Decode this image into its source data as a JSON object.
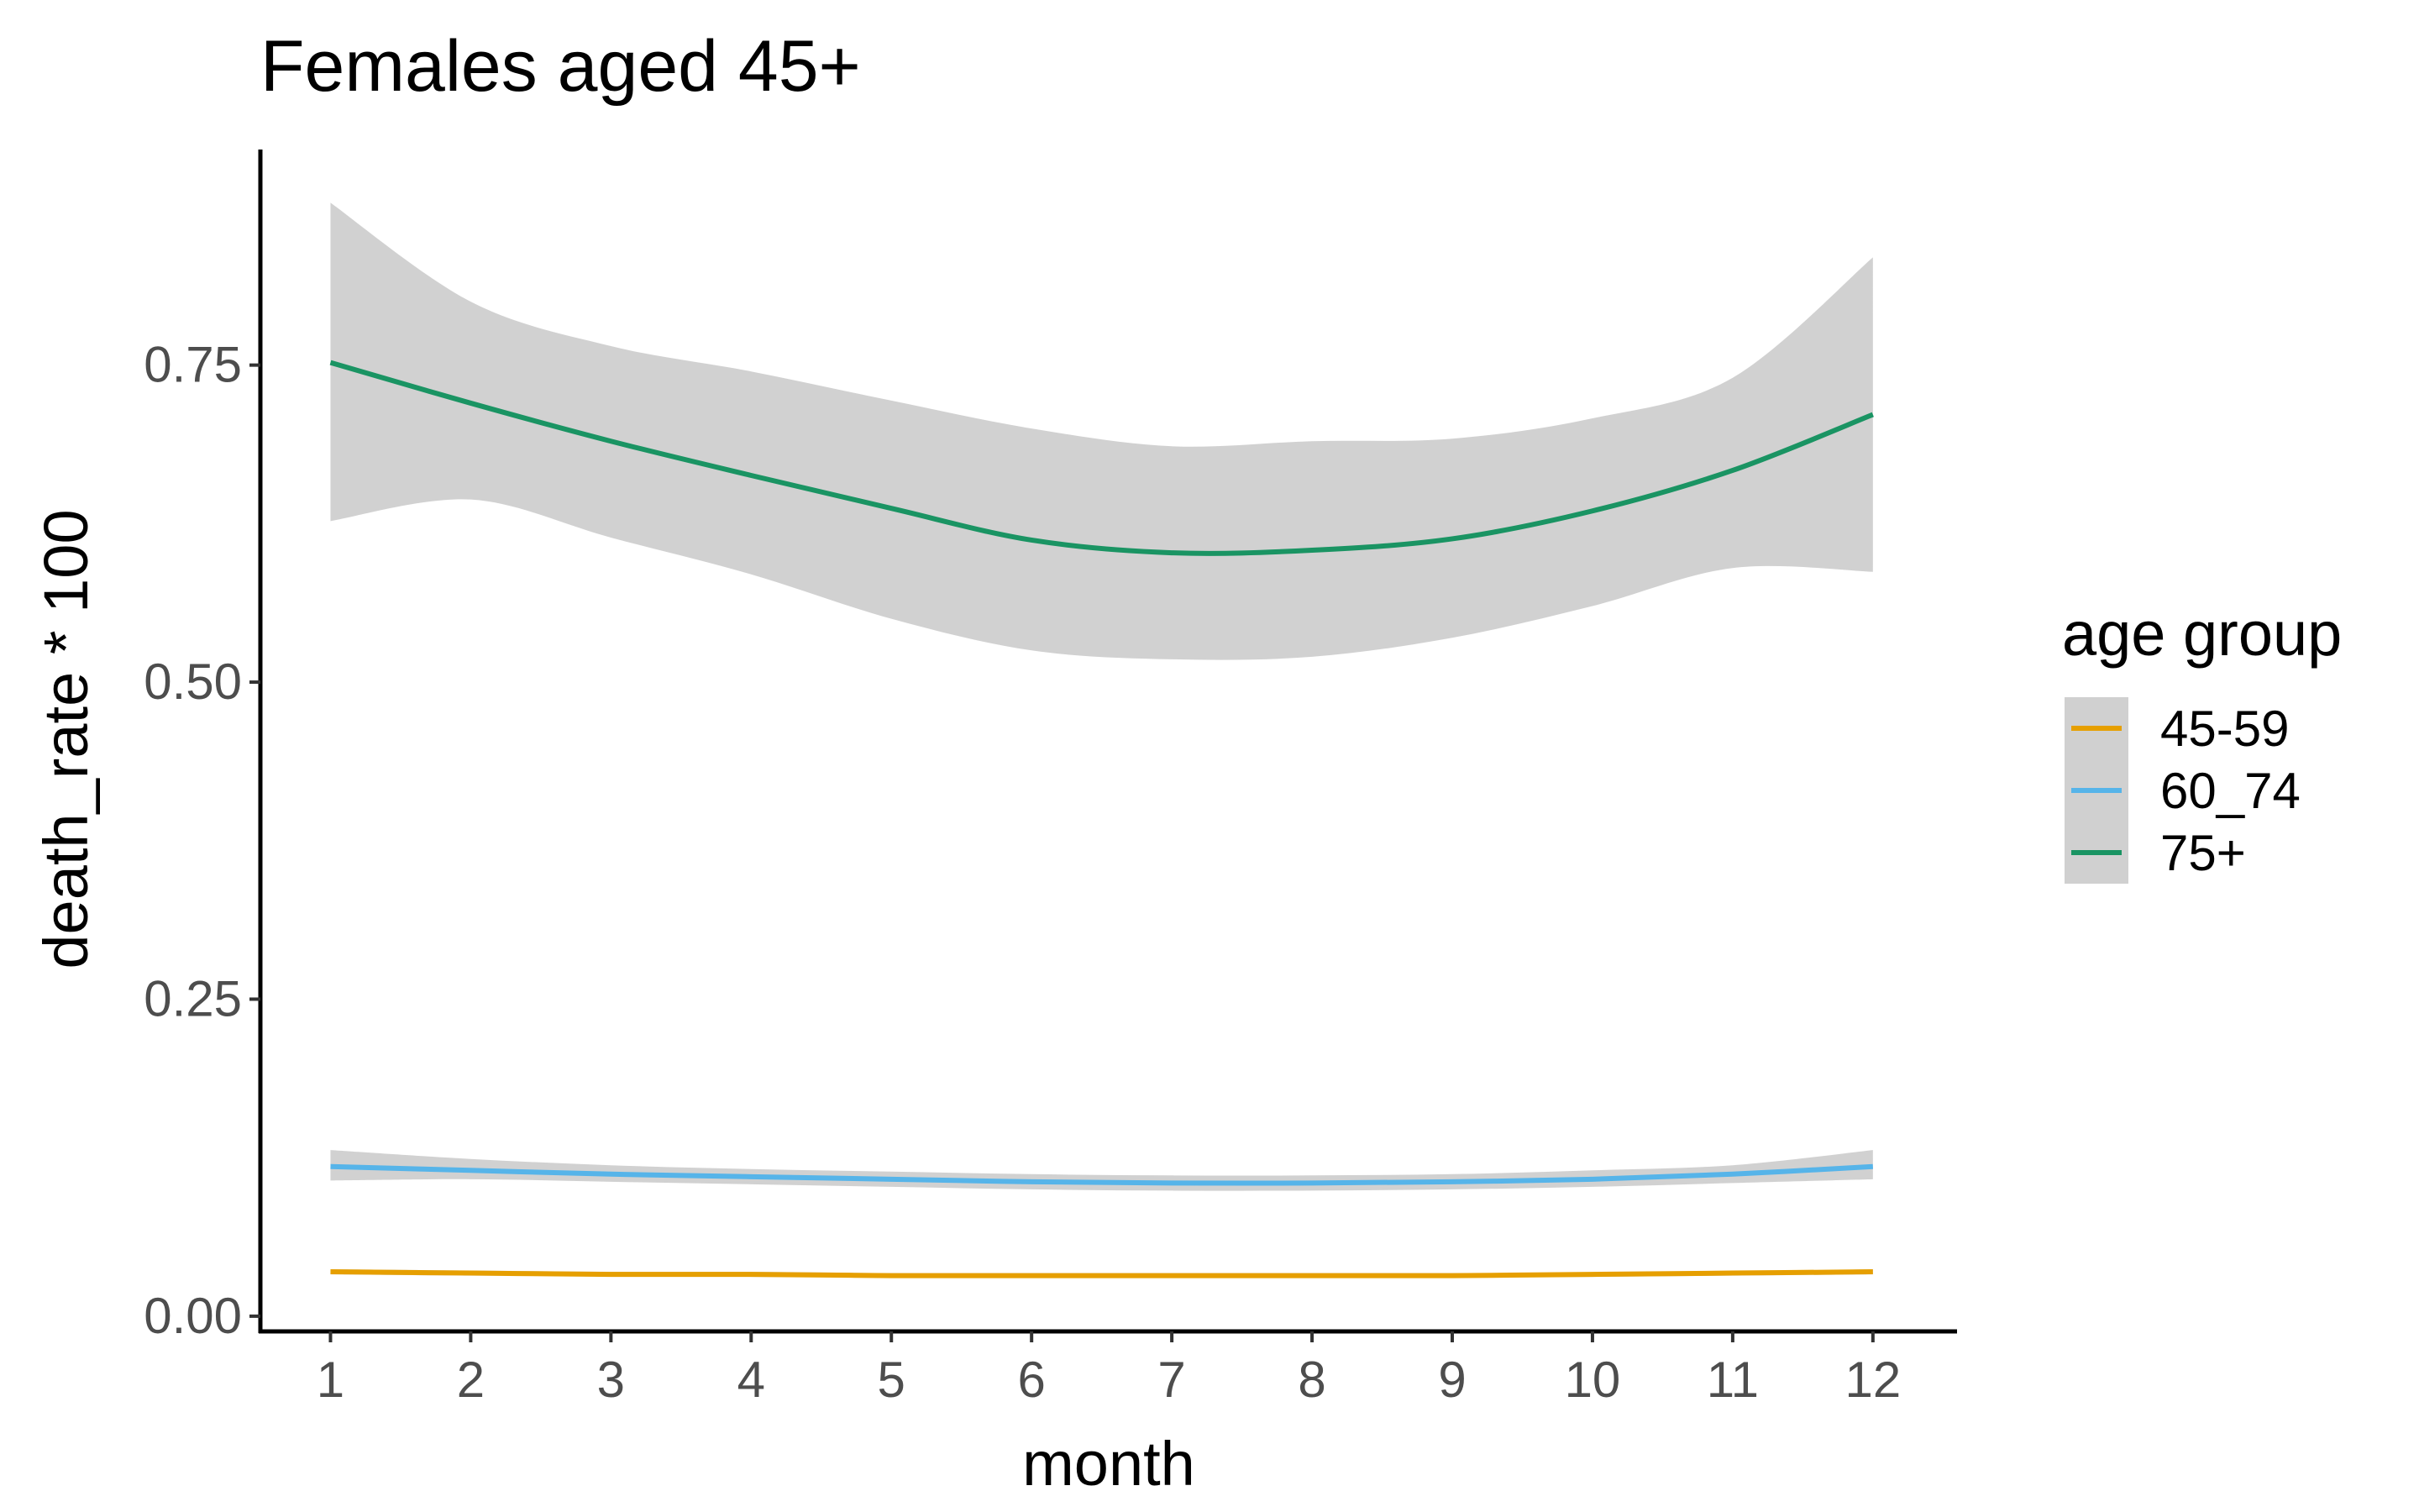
{
  "chart_data": {
    "type": "line",
    "title": "Females aged 45+",
    "xlabel": "month",
    "ylabel": "death_rate * 100",
    "x": [
      1,
      2,
      3,
      4,
      5,
      6,
      7,
      8,
      9,
      10,
      11,
      12
    ],
    "x_ticks": [
      "1",
      "2",
      "3",
      "4",
      "5",
      "6",
      "7",
      "8",
      "9",
      "10",
      "11",
      "12"
    ],
    "xlim": [
      0.5,
      12.6
    ],
    "ylim": [
      -0.012,
      0.92
    ],
    "y_ticks": [
      0.0,
      0.25,
      0.5,
      0.75
    ],
    "y_tick_labels": [
      "0.00",
      "0.25",
      "0.50",
      "0.75"
    ],
    "grid": false,
    "legend": {
      "title": "age group",
      "position": "right",
      "entries": [
        "45-59",
        "60_74",
        "75+"
      ]
    },
    "series": [
      {
        "name": "45-59",
        "color": "#E69F00",
        "values": [
          0.035,
          0.034,
          0.033,
          0.033,
          0.032,
          0.032,
          0.032,
          0.032,
          0.032,
          0.033,
          0.034,
          0.035
        ],
        "ci_lower": [
          0.033,
          0.032,
          0.032,
          0.031,
          0.031,
          0.031,
          0.031,
          0.031,
          0.031,
          0.031,
          0.032,
          0.033
        ],
        "ci_upper": [
          0.037,
          0.036,
          0.035,
          0.035,
          0.034,
          0.034,
          0.034,
          0.034,
          0.034,
          0.034,
          0.035,
          0.037
        ]
      },
      {
        "name": "60_74",
        "color": "#56B4E9",
        "values": [
          0.118,
          0.115,
          0.112,
          0.11,
          0.108,
          0.106,
          0.105,
          0.105,
          0.106,
          0.108,
          0.112,
          0.118
        ],
        "ci_lower": [
          0.107,
          0.108,
          0.106,
          0.104,
          0.102,
          0.1,
          0.099,
          0.099,
          0.1,
          0.102,
          0.105,
          0.108
        ],
        "ci_upper": [
          0.131,
          0.124,
          0.119,
          0.116,
          0.114,
          0.112,
          0.111,
          0.111,
          0.112,
          0.115,
          0.119,
          0.131
        ]
      },
      {
        "name": "75+",
        "color": "#1A9463",
        "values": [
          0.752,
          0.72,
          0.69,
          0.663,
          0.637,
          0.612,
          0.602,
          0.604,
          0.613,
          0.635,
          0.667,
          0.711
        ],
        "ci_lower": [
          0.627,
          0.644,
          0.614,
          0.585,
          0.55,
          0.525,
          0.518,
          0.52,
          0.535,
          0.56,
          0.59,
          0.587
        ],
        "ci_upper": [
          0.878,
          0.8,
          0.765,
          0.745,
          0.722,
          0.7,
          0.686,
          0.69,
          0.692,
          0.708,
          0.74,
          0.835
        ]
      }
    ]
  }
}
